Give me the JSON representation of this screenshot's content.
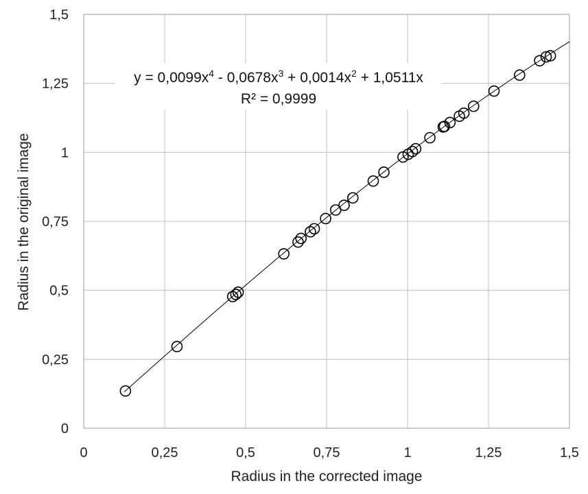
{
  "chart_data": {
    "type": "scatter",
    "xlabel": "Radius in the corrected  image",
    "ylabel": "Radius in the original image",
    "xlim": [
      0,
      1.5
    ],
    "ylim": [
      0,
      1.5
    ],
    "x_ticks": [
      "0",
      "0,25",
      "0,5",
      "0,75",
      "1",
      "1,25",
      "1,5"
    ],
    "y_ticks": [
      "0",
      "0,25",
      "0,5",
      "0,75",
      "1",
      "1,25",
      "1,5"
    ],
    "grid": true,
    "trendline": {
      "type": "polynomial",
      "coefficients": {
        "x4": 0.0099,
        "x3": -0.0678,
        "x2": 0.0014,
        "x1": 1.0511,
        "x0": 0
      },
      "x_range": [
        0.125,
        1.5
      ],
      "equation_parts": {
        "lead": "y = 0,0099x",
        "exp4": "4",
        "term3": " - 0,0678x",
        "exp3": "3",
        "term2": " + 0,0014x",
        "exp2": "2",
        "term1": " + 1,0511x"
      },
      "r_squared": "R² = 0,9999"
    },
    "series": [
      {
        "points": [
          [
            0.129,
            0.135
          ],
          [
            0.288,
            0.296
          ],
          [
            0.46,
            0.477
          ],
          [
            0.47,
            0.485
          ],
          [
            0.477,
            0.493
          ],
          [
            0.618,
            0.632
          ],
          [
            0.662,
            0.675
          ],
          [
            0.671,
            0.688
          ],
          [
            0.7,
            0.712
          ],
          [
            0.712,
            0.723
          ],
          [
            0.747,
            0.76
          ],
          [
            0.778,
            0.791
          ],
          [
            0.804,
            0.808
          ],
          [
            0.831,
            0.835
          ],
          [
            0.894,
            0.896
          ],
          [
            0.927,
            0.928
          ],
          [
            0.986,
            0.983
          ],
          [
            1.002,
            0.993
          ],
          [
            1.015,
            1.003
          ],
          [
            1.025,
            1.013
          ],
          [
            1.069,
            1.053
          ],
          [
            1.11,
            1.092
          ],
          [
            1.114,
            1.094
          ],
          [
            1.131,
            1.108
          ],
          [
            1.16,
            1.131
          ],
          [
            1.174,
            1.142
          ],
          [
            1.204,
            1.167
          ],
          [
            1.267,
            1.222
          ],
          [
            1.346,
            1.28
          ],
          [
            1.408,
            1.332
          ],
          [
            1.428,
            1.346
          ],
          [
            1.441,
            1.35
          ]
        ]
      }
    ]
  }
}
